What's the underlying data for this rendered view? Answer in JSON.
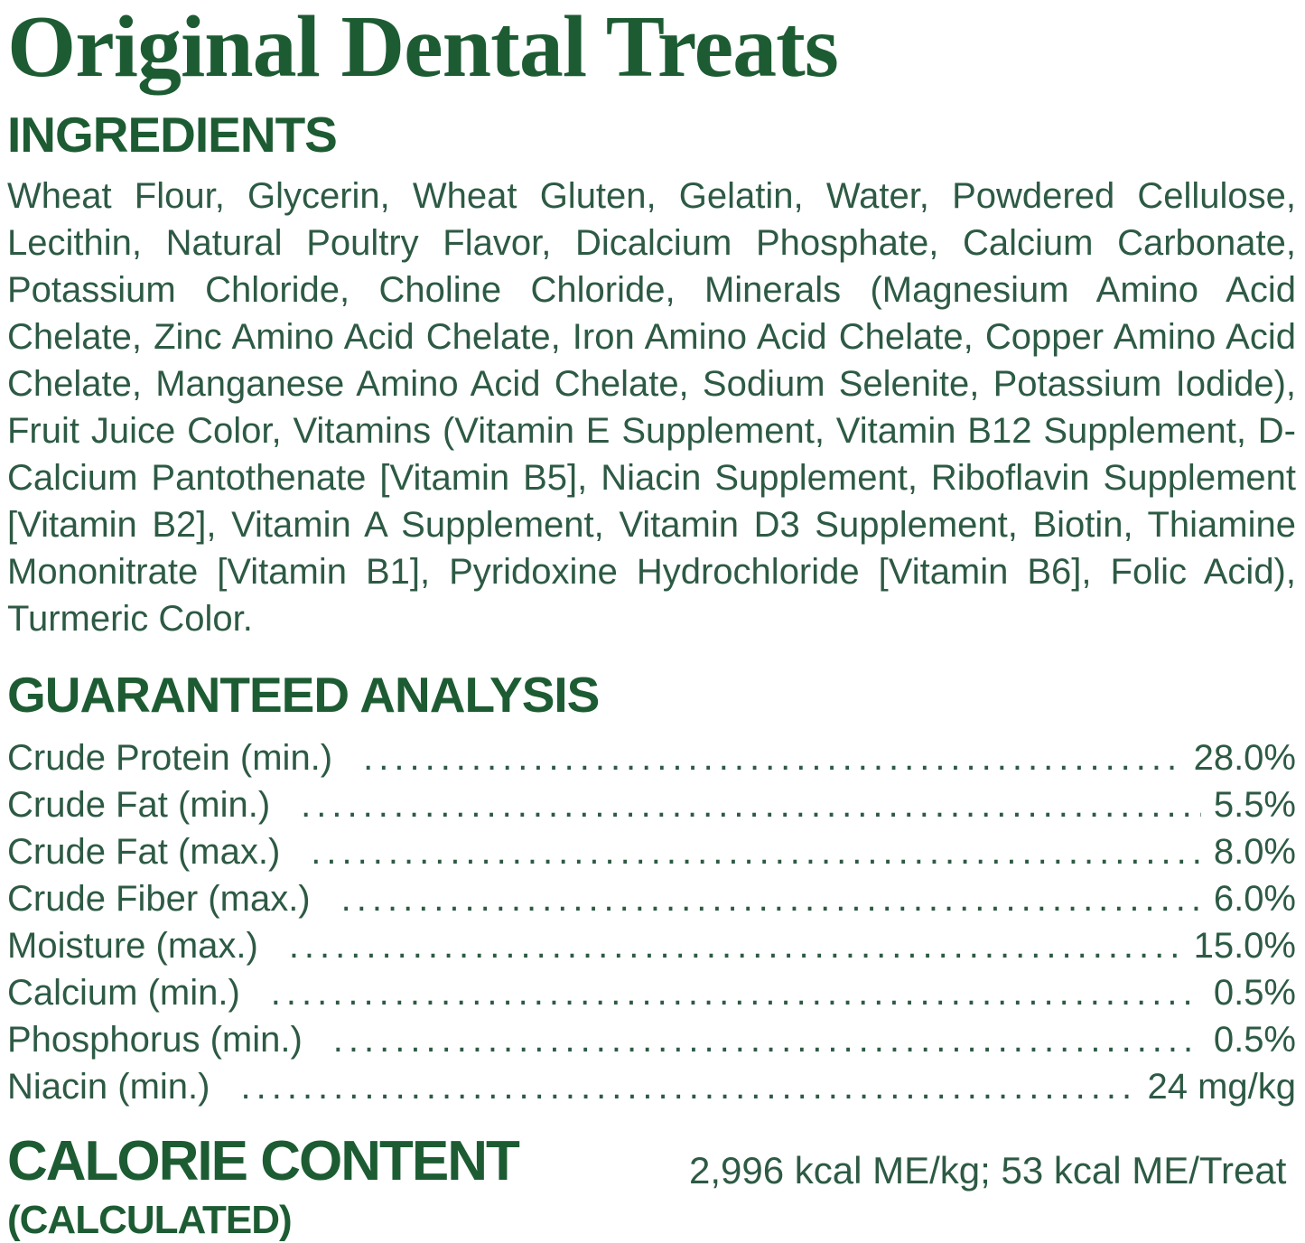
{
  "title": "Original Dental Treats",
  "ingredients": {
    "heading": "INGREDIENTS",
    "text": "Wheat Flour, Glycerin, Wheat Gluten, Gelatin, Water, Powdered Cellulose, Lecithin, Natural Poultry Flavor, Dicalcium Phosphate, Calcium Carbonate, Potassium Chloride, Choline Chloride, Minerals (Magnesium Amino Acid Chelate, Zinc Amino Acid Chelate, Iron Amino Acid Chelate, Copper Amino Acid Chelate, Manganese Amino Acid Chelate, Sodium Selenite, Potassium Iodide), Fruit Juice Color, Vitamins (Vitamin E Supplement, Vitamin B12 Supplement, D-Calcium Pantothenate [Vitamin B5], Niacin Supplement, Riboflavin Supplement [Vitamin B2], Vitamin A Supplement, Vitamin D3 Supplement, Biotin, Thiamine Mononitrate [Vitamin B1], Pyridoxine Hydrochloride [Vitamin B6], Folic Acid), Turmeric Color."
  },
  "guaranteed_analysis": {
    "heading": "GUARANTEED ANALYSIS",
    "rows": [
      {
        "label": "Crude Protein (min.)",
        "value": "28.0%"
      },
      {
        "label": "Crude Fat (min.)",
        "value": "5.5%"
      },
      {
        "label": "Crude Fat (max.)",
        "value": "8.0%"
      },
      {
        "label": "Crude Fiber (max.)",
        "value": "6.0%"
      },
      {
        "label": "Moisture (max.)",
        "value": "15.0%"
      },
      {
        "label": "Calcium (min.)",
        "value": "0.5%"
      },
      {
        "label": "Phosphorus (min.)",
        "value": "0.5%"
      },
      {
        "label": "Niacin (min.)",
        "value": "24 mg/kg"
      }
    ]
  },
  "calorie_content": {
    "heading_line1": "CALORIE CONTENT",
    "heading_line2": "(CALCULATED)",
    "value": "2,996 kcal ME/kg; 53 kcal ME/Treat"
  },
  "colors": {
    "brand_green": "#1d5c33",
    "body_green": "#2d5a44",
    "background": "#ffffff"
  }
}
